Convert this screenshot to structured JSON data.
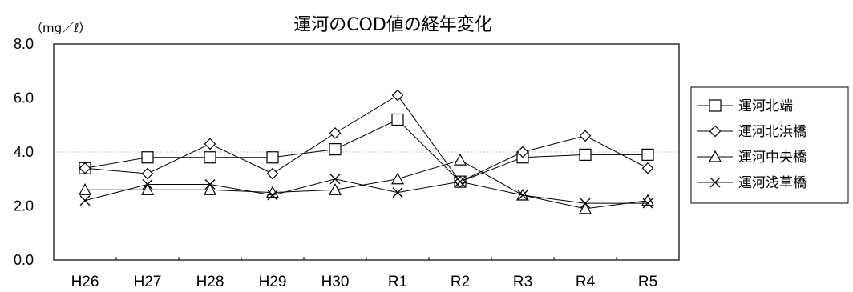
{
  "chart_data": {
    "type": "line",
    "title": "運河のCOD値の経年変化",
    "unit_label": "（mg／ℓ）",
    "xlabel": "",
    "ylabel": "",
    "categories": [
      "H26",
      "H27",
      "H28",
      "H29",
      "H30",
      "R1",
      "R2",
      "R3",
      "R4",
      "R5"
    ],
    "ylim": [
      0,
      8
    ],
    "yticks": [
      "0.0",
      "2.0",
      "4.0",
      "6.0",
      "8.0"
    ],
    "grid": true,
    "legend_position": "right",
    "series": [
      {
        "name": "運河北端",
        "marker": "square",
        "values": [
          3.4,
          3.8,
          3.8,
          3.8,
          4.1,
          5.2,
          2.9,
          3.8,
          3.9,
          3.9
        ]
      },
      {
        "name": "運河北浜橋",
        "marker": "diamond",
        "values": [
          3.4,
          3.2,
          4.3,
          3.2,
          4.7,
          6.1,
          2.9,
          4.0,
          4.6,
          3.4
        ]
      },
      {
        "name": "運河中央橋",
        "marker": "triangle",
        "values": [
          2.6,
          2.6,
          2.6,
          2.5,
          2.6,
          3.0,
          3.7,
          2.4,
          1.9,
          2.2
        ]
      },
      {
        "name": "運河浅草橋",
        "marker": "x",
        "values": [
          2.2,
          2.8,
          2.8,
          2.4,
          3.0,
          2.5,
          2.9,
          2.4,
          2.1,
          2.1
        ]
      }
    ]
  }
}
